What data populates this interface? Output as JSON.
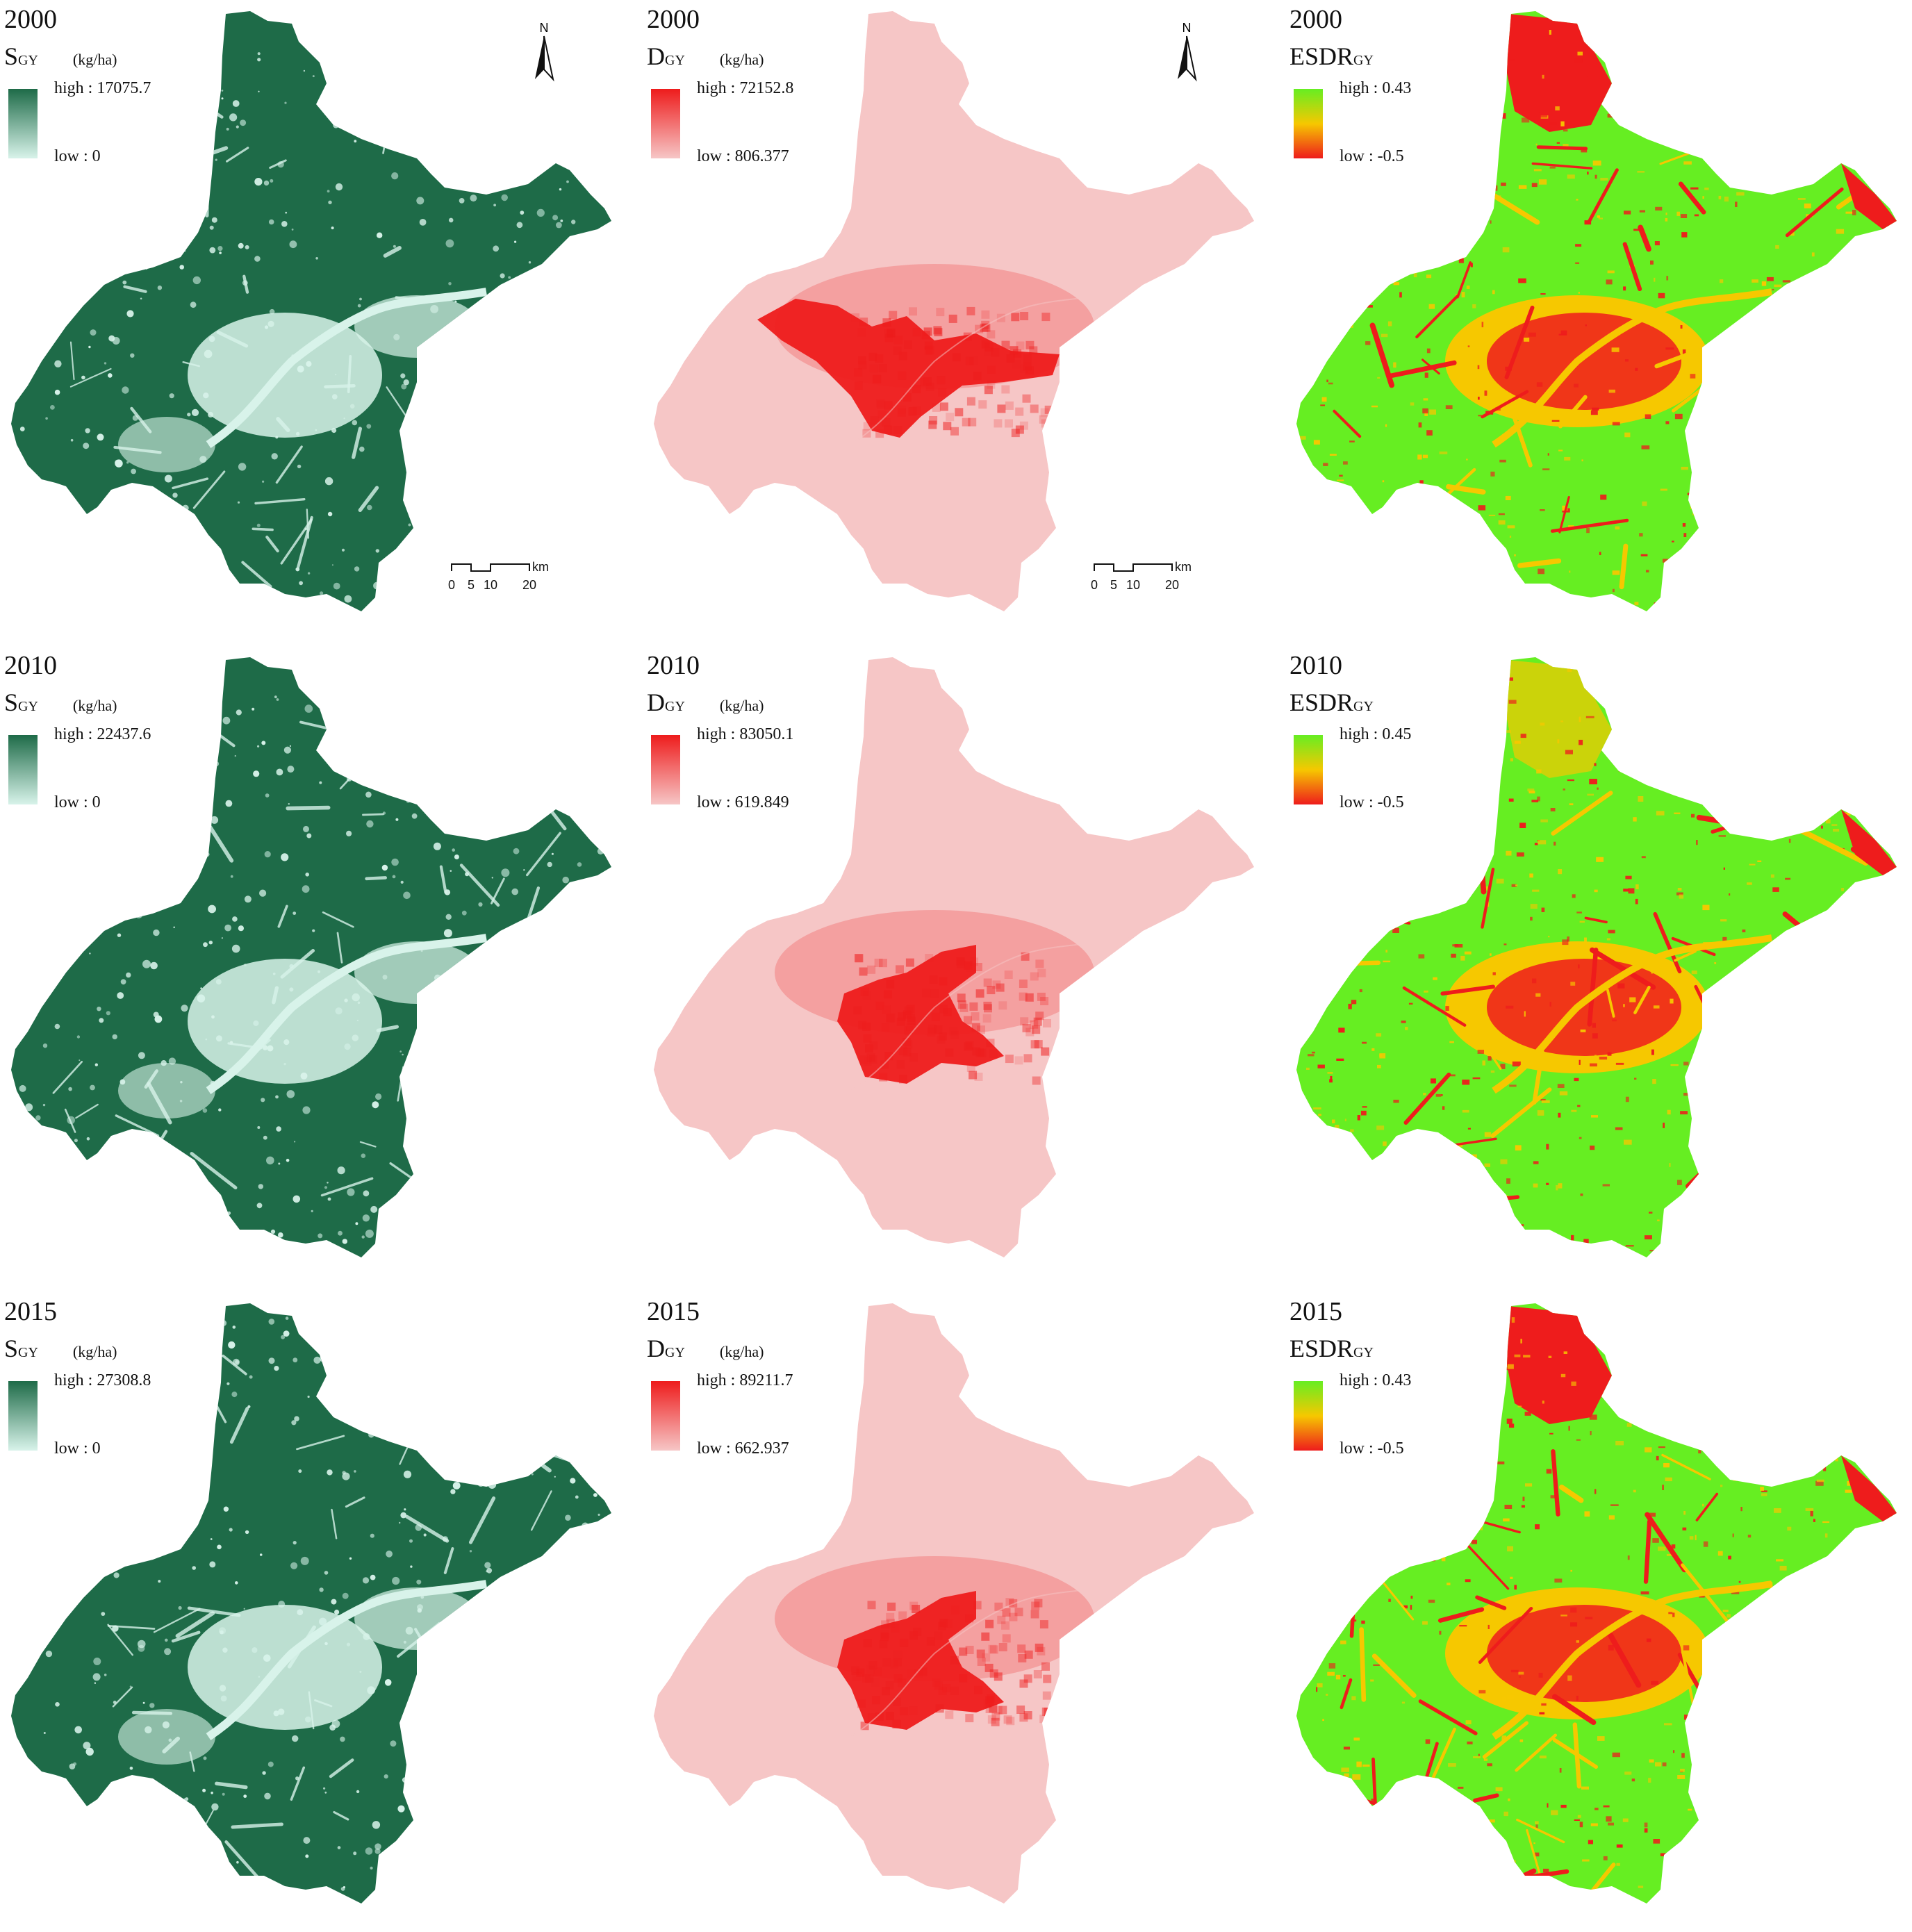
{
  "unit": "(kg/ha)",
  "north_label": "N",
  "scale_labels": [
    "0",
    "5",
    "10",
    "20"
  ],
  "scale_unit": "km",
  "colors": {
    "supply_high": "#1e6b48",
    "supply_low": "#d8f3ea",
    "demand_high": "#ee1c1c",
    "demand_low": "#f6c6c6",
    "esdr_high": "#66ee22",
    "esdr_mid": "#f6c800",
    "esdr_low": "#ee1c1c"
  },
  "rows": [
    {
      "year": "2000",
      "supply": {
        "title": "S",
        "sub": "GY",
        "unit": "(kg/ha)",
        "high": "high : 17075.7",
        "low": "low : 0"
      },
      "demand": {
        "title": "D",
        "sub": "GY",
        "unit": "(kg/ha)",
        "high": "high : 72152.8",
        "low": "low : 806.377"
      },
      "esdr": {
        "title": "ESDR",
        "sub": "GY",
        "high": "high : 0.43",
        "low": "low : -0.5"
      }
    },
    {
      "year": "2010",
      "supply": {
        "title": "S",
        "sub": "GY",
        "unit": "(kg/ha)",
        "high": "high : 22437.6",
        "low": "low : 0"
      },
      "demand": {
        "title": "D",
        "sub": "GY",
        "unit": "(kg/ha)",
        "high": "high : 83050.1",
        "low": "low : 619.849"
      },
      "esdr": {
        "title": "ESDR",
        "sub": "GY",
        "high": "high : 0.45",
        "low": "low : -0.5"
      }
    },
    {
      "year": "2015",
      "supply": {
        "title": "S",
        "sub": "GY",
        "unit": "(kg/ha)",
        "high": "high : 27308.8",
        "low": "low : 0"
      },
      "demand": {
        "title": "D",
        "sub": "GY",
        "unit": "(kg/ha)",
        "high": "high : 89211.7",
        "low": "low : 662.937"
      },
      "esdr": {
        "title": "ESDR",
        "sub": "GY",
        "high": "high : 0.43",
        "low": "low : -0.5"
      }
    }
  ]
}
